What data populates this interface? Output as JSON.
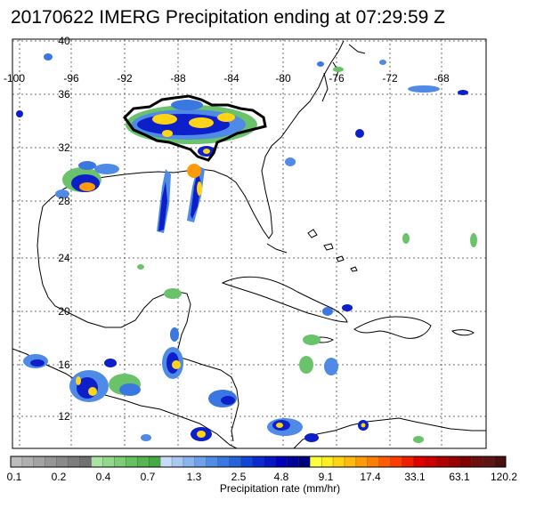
{
  "title": "20170622 IMERG Precipitation ending at 07:29:59 Z",
  "map": {
    "lon_labels": [
      "-100",
      "-96",
      "-92",
      "-88",
      "-84",
      "-80",
      "-76",
      "-72",
      "-68"
    ],
    "lat_labels": [
      "40",
      "36",
      "32",
      "28",
      "24",
      "20",
      "16",
      "12"
    ]
  },
  "colorbar": {
    "label": "Precipitation rate (mm/hr)",
    "tick_labels": [
      "0.1",
      "0.2",
      "0.4",
      "0.7",
      "1.3",
      "2.5",
      "4.8",
      "9.1",
      "17.4",
      "33.1",
      "63.1",
      "120.2"
    ],
    "colors": [
      "#bdbdbd",
      "#b0b0b0",
      "#a3a3a3",
      "#969696",
      "#8a8a8a",
      "#7d7d7d",
      "#707070",
      "#a9e3a3",
      "#93d88c",
      "#7ccd76",
      "#66c160",
      "#56b550",
      "#47a944",
      "#c7dcf7",
      "#a9c8f2",
      "#8ab5ee",
      "#6ea1ea",
      "#528ce6",
      "#3a77e0",
      "#2563d9",
      "#1246d6",
      "#0a2bd0",
      "#0516c4",
      "#0000b8",
      "#00009a",
      "#00007d",
      "#ffff3c",
      "#ffee22",
      "#ffd417",
      "#ffb90f",
      "#ff9a0a",
      "#ff7c05",
      "#ff5b02",
      "#ff3c00",
      "#f01e00",
      "#df0000",
      "#c80000",
      "#b00000",
      "#980000",
      "#800000",
      "#6e0e0e",
      "#5c1414",
      "#4a1010"
    ]
  }
}
